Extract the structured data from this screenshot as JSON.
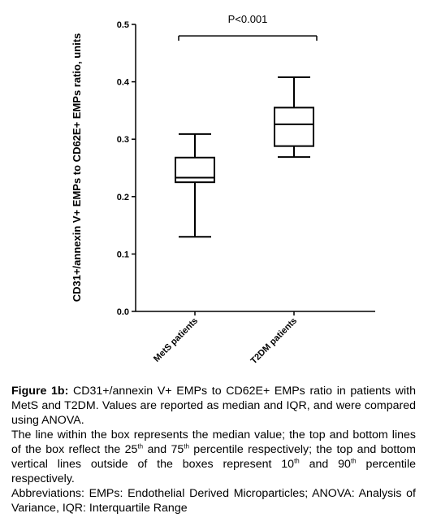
{
  "chart_data": {
    "type": "box",
    "ylabel": "CD31+/annexin V+ EMPs to CD62E+ EMPs ratio, units",
    "ylim": [
      0.0,
      0.5
    ],
    "yticks": [
      "0.0",
      "0.1",
      "0.2",
      "0.3",
      "0.4",
      "0.5"
    ],
    "categories": [
      "MetS patients",
      "T2DM patients"
    ],
    "boxes": [
      {
        "category": "MetS patients",
        "whisker_low": 0.13,
        "q1": 0.225,
        "median": 0.233,
        "q3": 0.268,
        "whisker_high": 0.309
      },
      {
        "category": "T2DM patients",
        "whisker_low": 0.269,
        "q1": 0.288,
        "median": 0.326,
        "q3": 0.355,
        "whisker_high": 0.408
      }
    ],
    "annotation": {
      "text": "P<0.001",
      "bracket_y": 0.48
    }
  },
  "caption": {
    "title": "Figure 1b:",
    "text": " CD31+/annexin V+ EMPs to CD62E+ EMPs ratio in patients with MetS and T2DM. Values are reported as median and IQR, and were compared using ANOVA.",
    "detail": {
      "p1": "The line within the box represents the median value; the top and bottom lines of the box reflect the 25",
      "sup1": "th",
      "p2": " and 75",
      "sup2": "th",
      "p3": " percentile respectively; the top and bottom vertical lines outside of the boxes represent 10",
      "sup3": "th",
      "p4": " and 90",
      "sup4": "th",
      "p5": " percentile respectively."
    },
    "abbreviations": "Abbreviations: EMPs: Endothelial Derived Microparticles; ANOVA: Analysis of Variance, IQR: Interquartile Range"
  }
}
